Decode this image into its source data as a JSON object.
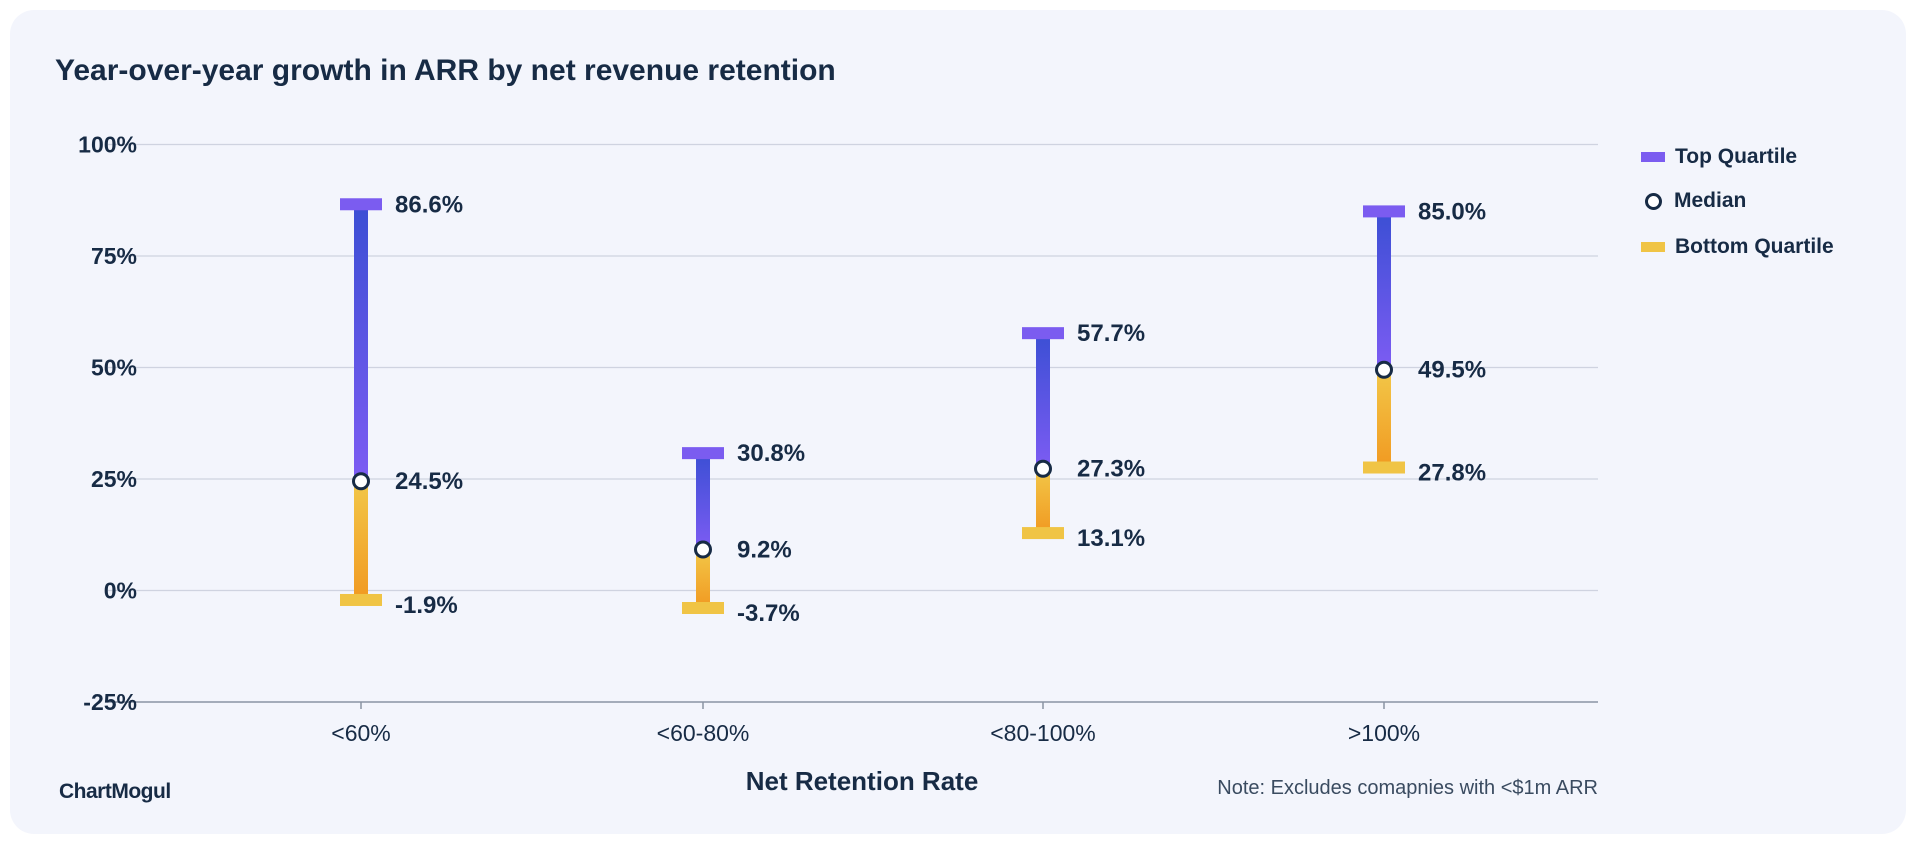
{
  "chart_data": {
    "type": "range-bar",
    "title": "Year-over-year growth in ARR by net revenue retention",
    "xlabel": "Net Retention Rate",
    "ylabel": "",
    "ylim": [
      -25,
      100
    ],
    "yticks": [
      "100%",
      "75%",
      "50%",
      "25%",
      "0%",
      "-25%"
    ],
    "ytick_values": [
      100,
      75,
      50,
      25,
      0,
      -25
    ],
    "grid": true,
    "legend_position": "right",
    "categories": [
      "<60%",
      "<60-80%",
      "<80-100%",
      ">100%"
    ],
    "series": [
      {
        "name": "Top Quartile",
        "values": [
          86.6,
          30.8,
          57.7,
          85.0
        ],
        "labels": [
          "86.6%",
          "30.8%",
          "57.7%",
          "85.0%"
        ],
        "color": "#7b5cf0"
      },
      {
        "name": "Median",
        "values": [
          24.5,
          9.2,
          27.3,
          49.5
        ],
        "labels": [
          "24.5%",
          "9.2%",
          "27.3%",
          "49.5%"
        ],
        "color": "#172b45"
      },
      {
        "name": "Bottom Quartile",
        "values": [
          -1.9,
          -3.7,
          13.1,
          27.8
        ],
        "labels": [
          "-1.9%",
          "-3.7%",
          "13.1%",
          "27.8%"
        ],
        "color": "#f0c445"
      }
    ]
  },
  "legend": [
    "Top Quartile",
    "Median",
    "Bottom Quartile"
  ],
  "brand": "ChartMogul",
  "note": "Note: Excludes comapnies with <$1m ARR"
}
